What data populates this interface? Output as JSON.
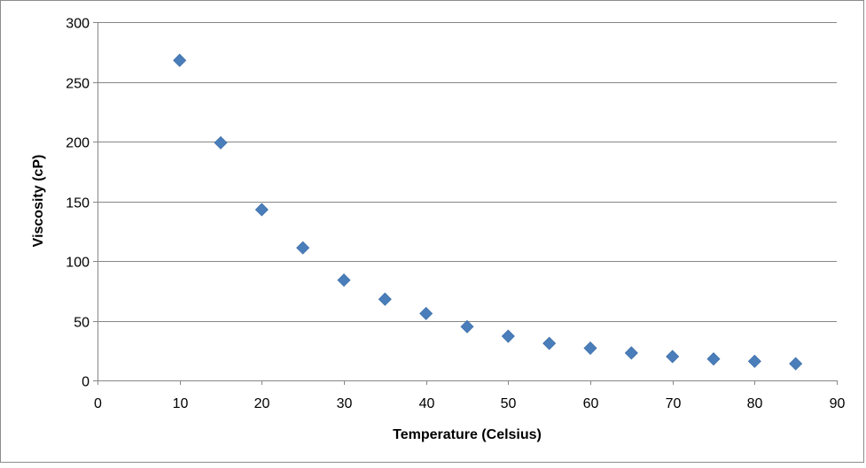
{
  "chart_data": {
    "type": "scatter",
    "title": "",
    "xlabel": "Temperature (Celsius)",
    "ylabel": "Viscosity (cP)",
    "xlim": [
      0,
      90
    ],
    "ylim": [
      0,
      300
    ],
    "x_ticks": [
      0,
      10,
      20,
      30,
      40,
      50,
      60,
      70,
      80,
      90
    ],
    "y_ticks": [
      0,
      50,
      100,
      150,
      200,
      250,
      300
    ],
    "x_tick_labels": [
      "0",
      "10",
      "20",
      "30",
      "40",
      "50",
      "60",
      "70",
      "80",
      "90"
    ],
    "y_tick_labels": [
      "0",
      "50",
      "100",
      "150",
      "200",
      "250",
      "300"
    ],
    "grid": "horizontal",
    "legend": "none",
    "marker": "diamond",
    "color": "#4a7ebb",
    "series": [
      {
        "x": [
          10,
          15,
          20,
          25,
          30,
          35,
          40,
          45,
          50,
          55,
          60,
          65,
          70,
          75,
          80,
          85
        ],
        "y": [
          268,
          199,
          143,
          111,
          84,
          68,
          56,
          45,
          37,
          31,
          27,
          23,
          20,
          18,
          16,
          14
        ]
      }
    ]
  }
}
